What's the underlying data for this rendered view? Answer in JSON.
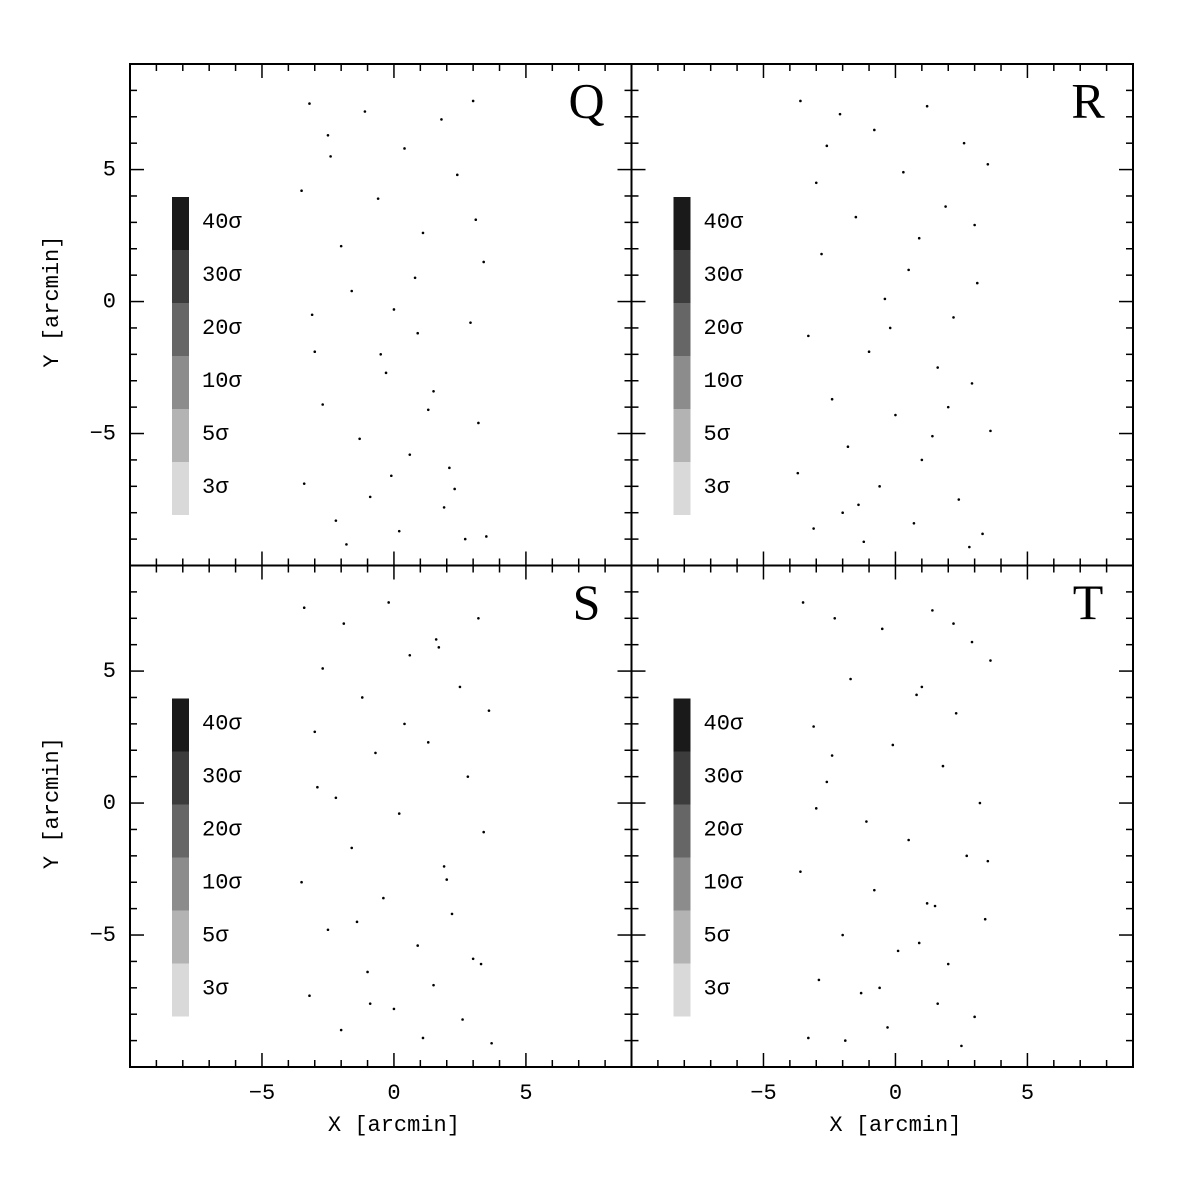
{
  "chart_data": [
    {
      "type": "scatter",
      "label": "Q",
      "ylabel": "Y [arcmin]",
      "show_xticklabels": false,
      "show_yticklabels": true,
      "xlim": [
        -10,
        9
      ],
      "ylim": [
        -10,
        9
      ],
      "xticks": [
        {
          "value": -5,
          "label": "−5"
        },
        0,
        5
      ],
      "yticks": [
        {
          "value": -5,
          "label": "−5"
        },
        0,
        5
      ],
      "xminorticks": [
        -9,
        -8,
        -7,
        -6,
        -4,
        -3,
        -2,
        -1,
        1,
        2,
        3,
        4,
        6,
        7,
        8
      ],
      "yminorticks": [
        -9,
        -8,
        -7,
        -6,
        -4,
        -3,
        -2,
        -1,
        1,
        2,
        3,
        4,
        6,
        7,
        8
      ],
      "color": "#000000",
      "x": [
        -3.2,
        -2.5,
        -1.1,
        0.4,
        1.8,
        3.0,
        -3.5,
        -0.6,
        2.4,
        1.1,
        -2.0,
        0.0,
        3.4,
        -1.6,
        2.9,
        -3.0,
        0.9,
        -0.3,
        1.5,
        -2.7,
        3.2,
        -1.3,
        0.6,
        2.1,
        -3.4,
        -0.9,
        1.9,
        -2.2,
        0.2,
        3.5,
        -1.8,
        2.7,
        -0.1,
        1.3,
        -3.1,
        0.8,
        -2.4,
        3.1,
        -0.5,
        2.3
      ],
      "y": [
        7.5,
        6.3,
        7.2,
        5.8,
        6.9,
        7.6,
        4.2,
        3.9,
        4.8,
        2.6,
        2.1,
        -0.3,
        1.5,
        0.4,
        -0.8,
        -1.9,
        -1.2,
        -2.7,
        -3.4,
        -3.9,
        -4.6,
        -5.2,
        -5.8,
        -6.3,
        -6.9,
        -7.4,
        -7.8,
        -8.3,
        -8.7,
        -8.9,
        -9.2,
        -9.0,
        -6.6,
        -4.1,
        -0.5,
        0.9,
        5.5,
        3.1,
        -2.0,
        -7.1
      ],
      "levels": [
        {
          "label": "40σ",
          "color": "#1a1a1a"
        },
        {
          "label": "30σ",
          "color": "#3c3c3c"
        },
        {
          "label": "20σ",
          "color": "#666666"
        },
        {
          "label": "10σ",
          "color": "#8c8c8c"
        },
        {
          "label": "5σ",
          "color": "#b3b3b3"
        },
        {
          "label": "3σ",
          "color": "#d9d9d9"
        }
      ]
    },
    {
      "type": "scatter",
      "label": "R",
      "show_xticklabels": false,
      "show_yticklabels": false,
      "xlim": [
        -10,
        9
      ],
      "ylim": [
        -10,
        9
      ],
      "xticks": [
        {
          "value": -5,
          "label": "−5"
        },
        0,
        5
      ],
      "yticks": [
        {
          "value": -5,
          "label": "−5"
        },
        0,
        5
      ],
      "xminorticks": [
        -9,
        -8,
        -7,
        -6,
        -4,
        -3,
        -2,
        -1,
        1,
        2,
        3,
        4,
        6,
        7,
        8
      ],
      "yminorticks": [
        -9,
        -8,
        -7,
        -6,
        -4,
        -3,
        -2,
        -1,
        1,
        2,
        3,
        4,
        6,
        7,
        8
      ],
      "color": "#000000",
      "x": [
        -3.6,
        -2.1,
        -0.8,
        1.2,
        2.6,
        3.5,
        -3.0,
        0.3,
        1.9,
        -1.5,
        -2.8,
        0.9,
        3.1,
        -0.4,
        2.2,
        -3.3,
        -1.0,
        1.6,
        2.9,
        -2.4,
        0.0,
        3.6,
        -1.8,
        1.0,
        -3.7,
        -0.6,
        2.4,
        -2.0,
        0.7,
        3.3,
        -1.2,
        2.8,
        -3.1,
        1.4,
        -0.2,
        3.0,
        -2.6,
        0.5,
        2.0,
        -1.4
      ],
      "y": [
        7.6,
        7.1,
        6.5,
        7.4,
        6.0,
        5.2,
        4.5,
        4.9,
        3.6,
        3.2,
        1.8,
        2.4,
        0.7,
        0.1,
        -0.6,
        -1.3,
        -1.9,
        -2.5,
        -3.1,
        -3.7,
        -4.3,
        -4.9,
        -5.5,
        -6.0,
        -6.5,
        -7.0,
        -7.5,
        -8.0,
        -8.4,
        -8.8,
        -9.1,
        -9.3,
        -8.6,
        -5.1,
        -1.0,
        2.9,
        5.9,
        1.2,
        -4.0,
        -7.7
      ],
      "levels": [
        {
          "label": "40σ",
          "color": "#1a1a1a"
        },
        {
          "label": "30σ",
          "color": "#3c3c3c"
        },
        {
          "label": "20σ",
          "color": "#666666"
        },
        {
          "label": "10σ",
          "color": "#8c8c8c"
        },
        {
          "label": "5σ",
          "color": "#b3b3b3"
        },
        {
          "label": "3σ",
          "color": "#d9d9d9"
        }
      ]
    },
    {
      "type": "scatter",
      "label": "S",
      "xlabel": "X [arcmin]",
      "ylabel": "Y [arcmin]",
      "show_xticklabels": true,
      "show_yticklabels": true,
      "xlim": [
        -10,
        9
      ],
      "ylim": [
        -10,
        9
      ],
      "xticks": [
        {
          "value": -5,
          "label": "−5"
        },
        0,
        5
      ],
      "yticks": [
        {
          "value": -5,
          "label": "−5"
        },
        0,
        5
      ],
      "xminorticks": [
        -9,
        -8,
        -7,
        -6,
        -4,
        -3,
        -2,
        -1,
        1,
        2,
        3,
        4,
        6,
        7,
        8
      ],
      "yminorticks": [
        -9,
        -8,
        -7,
        -6,
        -4,
        -3,
        -2,
        -1,
        1,
        2,
        3,
        4,
        6,
        7,
        8
      ],
      "color": "#000000",
      "x": [
        -3.4,
        -1.9,
        -0.2,
        1.6,
        3.2,
        -2.7,
        0.6,
        2.5,
        -1.2,
        3.6,
        -3.0,
        -0.7,
        1.3,
        2.8,
        -2.2,
        0.2,
        3.4,
        -1.6,
        1.9,
        -3.5,
        -0.4,
        2.2,
        -2.5,
        0.9,
        3.0,
        -1.0,
        1.5,
        -3.2,
        0.0,
        2.6,
        -2.0,
        1.1,
        3.7,
        -0.9,
        2.0,
        -2.9,
        0.4,
        3.3,
        -1.4,
        1.7
      ],
      "y": [
        7.4,
        6.8,
        7.6,
        6.2,
        7.0,
        5.1,
        5.6,
        4.4,
        4.0,
        3.5,
        2.7,
        1.9,
        2.3,
        1.0,
        0.2,
        -0.4,
        -1.1,
        -1.7,
        -2.4,
        -3.0,
        -3.6,
        -4.2,
        -4.8,
        -5.4,
        -5.9,
        -6.4,
        -6.9,
        -7.3,
        -7.8,
        -8.2,
        -8.6,
        -8.9,
        -9.1,
        -7.6,
        -2.9,
        0.6,
        3.0,
        -6.1,
        -4.5,
        5.9
      ],
      "levels": [
        {
          "label": "40σ",
          "color": "#1a1a1a"
        },
        {
          "label": "30σ",
          "color": "#3c3c3c"
        },
        {
          "label": "20σ",
          "color": "#666666"
        },
        {
          "label": "10σ",
          "color": "#8c8c8c"
        },
        {
          "label": "5σ",
          "color": "#b3b3b3"
        },
        {
          "label": "3σ",
          "color": "#d9d9d9"
        }
      ]
    },
    {
      "type": "scatter",
      "label": "T",
      "xlabel": "X [arcmin]",
      "show_xticklabels": true,
      "show_yticklabels": false,
      "xlim": [
        -10,
        9
      ],
      "ylim": [
        -10,
        9
      ],
      "xticks": [
        {
          "value": -5,
          "label": "−5"
        },
        0,
        5
      ],
      "yticks": [
        {
          "value": -5,
          "label": "−5"
        },
        0,
        5
      ],
      "xminorticks": [
        -9,
        -8,
        -7,
        -6,
        -4,
        -3,
        -2,
        -1,
        1,
        2,
        3,
        4,
        6,
        7,
        8
      ],
      "yminorticks": [
        -9,
        -8,
        -7,
        -6,
        -4,
        -3,
        -2,
        -1,
        1,
        2,
        3,
        4,
        6,
        7,
        8
      ],
      "color": "#000000",
      "x": [
        -3.5,
        -2.3,
        -0.5,
        1.4,
        2.9,
        3.6,
        -1.7,
        0.8,
        2.3,
        -3.1,
        -0.1,
        1.8,
        -2.6,
        3.2,
        -1.1,
        0.5,
        2.7,
        -3.6,
        -0.8,
        1.2,
        3.4,
        -2.0,
        0.1,
        2.0,
        -2.9,
        -1.3,
        1.6,
        3.0,
        -0.3,
        -3.3,
        2.5,
        -1.9,
        0.9,
        3.5,
        -2.4,
        1.0,
        -0.6,
        2.2,
        -3.0,
        1.5
      ],
      "y": [
        7.6,
        7.0,
        6.6,
        7.3,
        6.1,
        5.4,
        4.7,
        4.1,
        3.4,
        2.9,
        2.2,
        1.4,
        0.8,
        0.0,
        -0.7,
        -1.4,
        -2.0,
        -2.6,
        -3.3,
        -3.8,
        -4.4,
        -5.0,
        -5.6,
        -6.1,
        -6.7,
        -7.2,
        -7.6,
        -8.1,
        -8.5,
        -8.9,
        -9.2,
        -9.0,
        -5.3,
        -2.2,
        1.8,
        4.4,
        -7.0,
        6.8,
        -0.2,
        -3.9
      ],
      "levels": [
        {
          "label": "40σ",
          "color": "#1a1a1a"
        },
        {
          "label": "30σ",
          "color": "#3c3c3c"
        },
        {
          "label": "20σ",
          "color": "#666666"
        },
        {
          "label": "10σ",
          "color": "#8c8c8c"
        },
        {
          "label": "5σ",
          "color": "#b3b3b3"
        },
        {
          "label": "3σ",
          "color": "#d9d9d9"
        }
      ]
    }
  ]
}
